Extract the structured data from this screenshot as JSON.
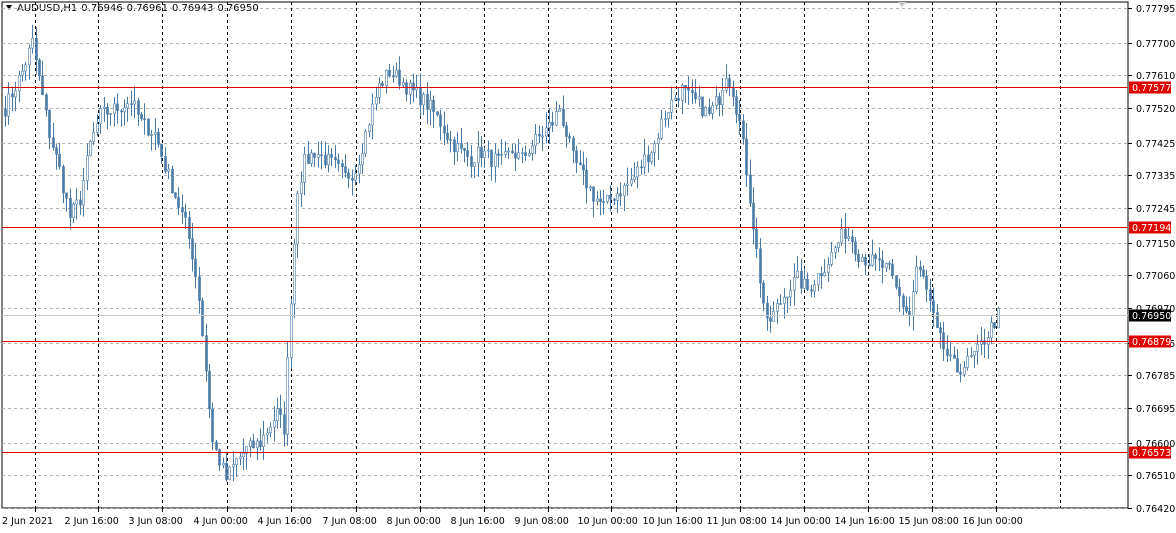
{
  "symbol": {
    "name": "AUDUSD,H1",
    "open": "0.76946",
    "high": "0.76961",
    "low": "0.76943",
    "close": "0.76950"
  },
  "colors": {
    "background": "#ffffff",
    "candle": "#4a7ba7",
    "level": "#e00000",
    "grid": "#b4b4b4",
    "current_price_bg": "#000000"
  },
  "chart_data": {
    "type": "candlestick",
    "timeframe": "H1",
    "ylim": [
      0.7642,
      0.77795
    ],
    "y_ticks": [
      "0.77795",
      "0.77700",
      "0.77610",
      "0.77520",
      "0.77425",
      "0.77335",
      "0.77245",
      "0.77150",
      "0.77060",
      "0.76970",
      "0.76875",
      "0.76785",
      "0.76695",
      "0.76600",
      "0.76510",
      "0.76420"
    ],
    "x_ticks": [
      "2 Jun 2021",
      "2 Jun 16:00",
      "3 Jun 08:00",
      "4 Jun 00:00",
      "4 Jun 16:00",
      "7 Jun 08:00",
      "8 Jun 00:00",
      "8 Jun 16:00",
      "9 Jun 08:00",
      "10 Jun 00:00",
      "10 Jun 16:00",
      "11 Jun 08:00",
      "14 Jun 00:00",
      "14 Jun 16:00",
      "15 Jun 08:00",
      "16 Jun 00:00"
    ],
    "levels": [
      "0.77577",
      "0.77194",
      "0.76879",
      "0.76573"
    ],
    "current_price": "0.76950",
    "grid": true,
    "close_anchors": [
      [
        0,
        0.7752
      ],
      [
        5,
        0.7762
      ],
      [
        8,
        0.777
      ],
      [
        10,
        0.776
      ],
      [
        13,
        0.7745
      ],
      [
        16,
        0.7735
      ],
      [
        19,
        0.7722
      ],
      [
        22,
        0.7727
      ],
      [
        25,
        0.7742
      ],
      [
        28,
        0.775
      ],
      [
        33,
        0.7752
      ],
      [
        37,
        0.7754
      ],
      [
        40,
        0.7748
      ],
      [
        44,
        0.7745
      ],
      [
        47,
        0.7736
      ],
      [
        50,
        0.7728
      ],
      [
        53,
        0.772
      ],
      [
        55,
        0.7712
      ],
      [
        57,
        0.77
      ],
      [
        59,
        0.768
      ],
      [
        61,
        0.766
      ],
      [
        63,
        0.7655
      ],
      [
        65,
        0.765
      ],
      [
        68,
        0.7655
      ],
      [
        71,
        0.7658
      ],
      [
        75,
        0.766
      ],
      [
        78,
        0.7665
      ],
      [
        80,
        0.7668
      ],
      [
        82,
        0.7664
      ],
      [
        84,
        0.77
      ],
      [
        86,
        0.773
      ],
      [
        88,
        0.7737
      ],
      [
        91,
        0.774
      ],
      [
        94,
        0.7738
      ],
      [
        97,
        0.7736
      ],
      [
        100,
        0.7733
      ],
      [
        103,
        0.7735
      ],
      [
        106,
        0.7745
      ],
      [
        108,
        0.7752
      ],
      [
        110,
        0.7758
      ],
      [
        113,
        0.7762
      ],
      [
        116,
        0.776
      ],
      [
        119,
        0.7757
      ],
      [
        122,
        0.7755
      ],
      [
        125,
        0.7752
      ],
      [
        128,
        0.7748
      ],
      [
        131,
        0.7743
      ],
      [
        134,
        0.774
      ],
      [
        137,
        0.7738
      ],
      [
        140,
        0.774
      ],
      [
        143,
        0.7738
      ],
      [
        146,
        0.7737
      ],
      [
        149,
        0.774
      ],
      [
        152,
        0.7738
      ],
      [
        155,
        0.7742
      ],
      [
        158,
        0.7745
      ],
      [
        161,
        0.7748
      ],
      [
        163,
        0.7752
      ],
      [
        165,
        0.7745
      ],
      [
        167,
        0.7738
      ],
      [
        170,
        0.7733
      ],
      [
        173,
        0.7728
      ],
      [
        176,
        0.7725
      ],
      [
        179,
        0.7728
      ],
      [
        182,
        0.773
      ],
      [
        185,
        0.7733
      ],
      [
        188,
        0.7738
      ],
      [
        191,
        0.7742
      ],
      [
        193,
        0.7748
      ],
      [
        195,
        0.7752
      ],
      [
        197,
        0.7755
      ],
      [
        199,
        0.7757
      ],
      [
        201,
        0.7755
      ],
      [
        204,
        0.7753
      ],
      [
        207,
        0.775
      ],
      [
        210,
        0.7755
      ],
      [
        212,
        0.7762
      ],
      [
        214,
        0.7757
      ],
      [
        216,
        0.7748
      ],
      [
        218,
        0.7735
      ],
      [
        220,
        0.772
      ],
      [
        222,
        0.7705
      ],
      [
        224,
        0.7692
      ],
      [
        227,
        0.7697
      ],
      [
        230,
        0.7702
      ],
      [
        233,
        0.7705
      ],
      [
        236,
        0.7702
      ],
      [
        239,
        0.7706
      ],
      [
        242,
        0.771
      ],
      [
        245,
        0.7715
      ],
      [
        247,
        0.7718
      ],
      [
        249,
        0.7716
      ],
      [
        251,
        0.7712
      ],
      [
        254,
        0.771
      ],
      [
        257,
        0.7709
      ],
      [
        260,
        0.7707
      ],
      [
        262,
        0.7702
      ],
      [
        264,
        0.7698
      ],
      [
        266,
        0.7695
      ],
      [
        268,
        0.7708
      ],
      [
        270,
        0.7705
      ],
      [
        272,
        0.7698
      ],
      [
        274,
        0.769
      ],
      [
        276,
        0.7686
      ],
      [
        278,
        0.7682
      ],
      [
        280,
        0.768
      ],
      [
        283,
        0.7682
      ],
      [
        286,
        0.7685
      ],
      [
        289,
        0.769
      ],
      [
        292,
        0.7695
      ]
    ]
  }
}
